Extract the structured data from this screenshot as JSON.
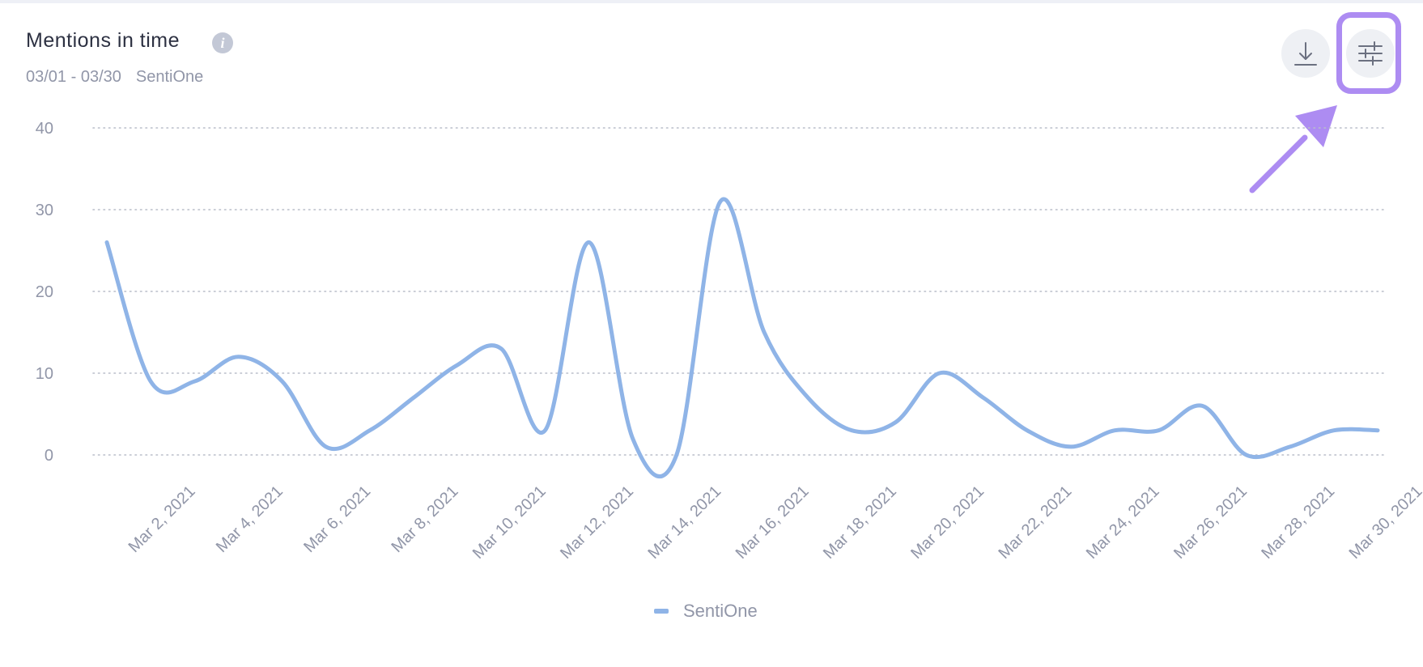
{
  "header": {
    "title": "Mentions in time",
    "date_range": "03/01 - 03/30",
    "source": "SentiOne"
  },
  "icons": {
    "info": "info-icon",
    "download": "download-icon",
    "settings": "sliders-icon",
    "annotation": "arrow-icon"
  },
  "colors": {
    "series": "#8fb4e7",
    "highlight": "#ad8cf2",
    "grid": "#b9bdc9",
    "tick_text": "#9196a8"
  },
  "chart_data": {
    "type": "line",
    "title": "Mentions in time",
    "xlabel": "",
    "ylabel": "",
    "ylim": [
      0,
      40
    ],
    "yticks": [
      0,
      10,
      20,
      30,
      40
    ],
    "grid": true,
    "legend_position": "bottom",
    "x_tick_labels": [
      "Mar 2, 2021",
      "Mar 4, 2021",
      "Mar 6, 2021",
      "Mar 8, 2021",
      "Mar 10, 2021",
      "Mar 12, 2021",
      "Mar 14, 2021",
      "Mar 16, 2021",
      "Mar 18, 2021",
      "Mar 20, 2021",
      "Mar 22, 2021",
      "Mar 24, 2021",
      "Mar 26, 2021",
      "Mar 28, 2021",
      "Mar 30, 2021"
    ],
    "x": [
      "Mar 1, 2021",
      "Mar 2, 2021",
      "Mar 3, 2021",
      "Mar 4, 2021",
      "Mar 5, 2021",
      "Mar 6, 2021",
      "Mar 7, 2021",
      "Mar 8, 2021",
      "Mar 9, 2021",
      "Mar 10, 2021",
      "Mar 11, 2021",
      "Mar 12, 2021",
      "Mar 13, 2021",
      "Mar 14, 2021",
      "Mar 15, 2021",
      "Mar 16, 2021",
      "Mar 17, 2021",
      "Mar 18, 2021",
      "Mar 19, 2021",
      "Mar 20, 2021",
      "Mar 21, 2021",
      "Mar 22, 2021",
      "Mar 23, 2021",
      "Mar 24, 2021",
      "Mar 25, 2021",
      "Mar 26, 2021",
      "Mar 27, 2021",
      "Mar 28, 2021",
      "Mar 29, 2021",
      "Mar 30, 2021"
    ],
    "series": [
      {
        "name": "SentiOne",
        "values": [
          26,
          9,
          9,
          12,
          9,
          1,
          3,
          7,
          11,
          13,
          3,
          26,
          2,
          0,
          31,
          15,
          7,
          3,
          4,
          10,
          7,
          3,
          1,
          3,
          3,
          6,
          0,
          1,
          3,
          3
        ]
      }
    ]
  }
}
